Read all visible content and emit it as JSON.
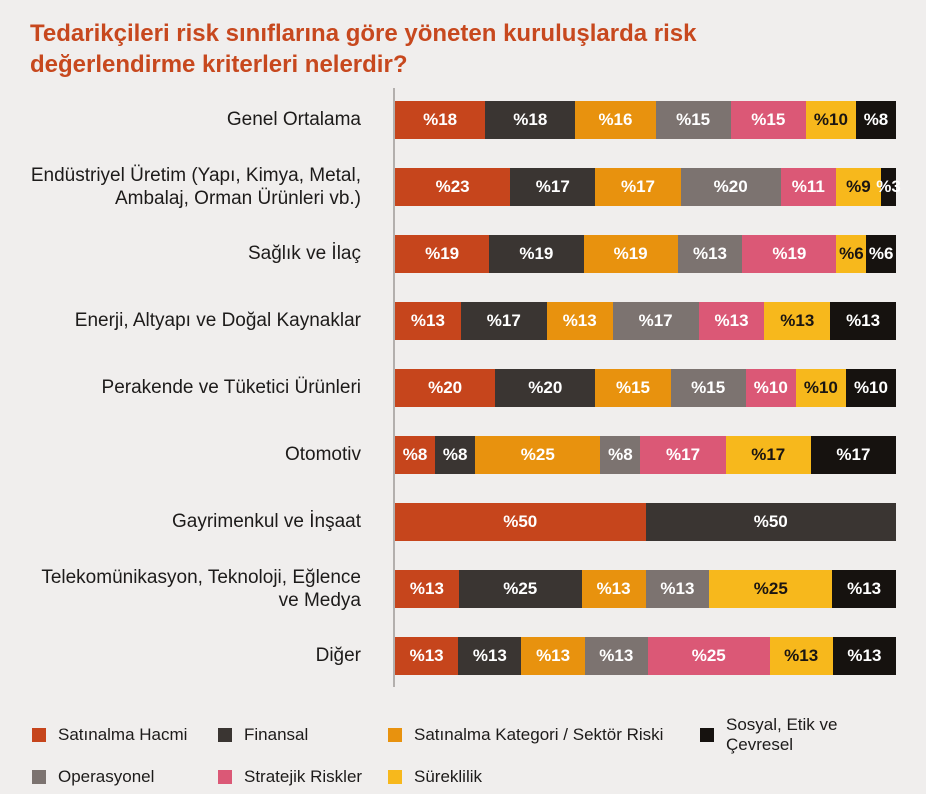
{
  "title_lines": [
    "Tedarikçileri risk sınıflarına göre yöneten kuruluşlarda risk",
    "değerlendirme kriterleri nelerdir?"
  ],
  "palette": {
    "satinalma_hacmi": "#C6451C",
    "finansal": "#3A3532",
    "satinalma_kategori": "#E8920E",
    "sosyal_etik_cevresel": "#16120F",
    "operasyonel": "#7C7370",
    "stratejik_riskler": "#DB5876",
    "sureklilik": "#F7B81C"
  },
  "background_color": "#F0EEED",
  "title_color": "#C7481E",
  "axis_line_color": "#B3AFAD",
  "chart_data": {
    "type": "bar",
    "stacked": true,
    "orientation": "horizontal",
    "unit": "percent",
    "title": "Tedarikçileri risk sınıflarına göre yöneten kuruluşlarda risk değerlendirme kriterleri nelerdir?",
    "legend_position": "bottom",
    "grid": false,
    "categories": [
      "Genel Ortalama",
      "Endüstriyel Üretim (Yapı, Kimya, Metal, Ambalaj, Orman Ürünleri vb.)",
      "Sağlık ve İlaç",
      "Enerji, Altyapı ve Doğal Kaynaklar",
      "Perakende ve Tüketici Ürünleri",
      "Otomotiv",
      "Gayrimenkul ve İnşaat",
      "Telekomünikasyon, Teknoloji, Eğlence ve Medya",
      "Diğer"
    ],
    "rows": [
      {
        "category": "Genel Ortalama",
        "segments": [
          {
            "series": "satinalma_hacmi",
            "value": 18,
            "label": "%18"
          },
          {
            "series": "finansal",
            "value": 18,
            "label": "%18"
          },
          {
            "series": "satinalma_kategori",
            "value": 16,
            "label": "%16"
          },
          {
            "series": "operasyonel",
            "value": 15,
            "label": "%15"
          },
          {
            "series": "stratejik_riskler",
            "value": 15,
            "label": "%15"
          },
          {
            "series": "sureklilik",
            "value": 10,
            "label": "%10"
          },
          {
            "series": "sosyal_etik_cevresel",
            "value": 8,
            "label": "%8"
          }
        ]
      },
      {
        "category": "Endüstriyel Üretim (Yapı, Kimya, Metal, Ambalaj, Orman Ürünleri vb.)",
        "segments": [
          {
            "series": "satinalma_hacmi",
            "value": 23,
            "label": "%23"
          },
          {
            "series": "finansal",
            "value": 17,
            "label": "%17"
          },
          {
            "series": "satinalma_kategori",
            "value": 17,
            "label": "%17"
          },
          {
            "series": "operasyonel",
            "value": 20,
            "label": "%20"
          },
          {
            "series": "stratejik_riskler",
            "value": 11,
            "label": "%11"
          },
          {
            "series": "sureklilik",
            "value": 9,
            "label": "%9"
          },
          {
            "series": "sosyal_etik_cevresel",
            "value": 3,
            "label": "%3"
          }
        ]
      },
      {
        "category": "Sağlık ve İlaç",
        "segments": [
          {
            "series": "satinalma_hacmi",
            "value": 19,
            "label": "%19"
          },
          {
            "series": "finansal",
            "value": 19,
            "label": "%19"
          },
          {
            "series": "satinalma_kategori",
            "value": 19,
            "label": "%19"
          },
          {
            "series": "operasyonel",
            "value": 13,
            "label": "%13"
          },
          {
            "series": "stratejik_riskler",
            "value": 19,
            "label": "%19"
          },
          {
            "series": "sureklilik",
            "value": 6,
            "label": "%6"
          },
          {
            "series": "sosyal_etik_cevresel",
            "value": 6,
            "label": "%6"
          }
        ]
      },
      {
        "category": "Enerji, Altyapı ve Doğal Kaynaklar",
        "segments": [
          {
            "series": "satinalma_hacmi",
            "value": 13,
            "label": "%13"
          },
          {
            "series": "finansal",
            "value": 17,
            "label": "%17"
          },
          {
            "series": "satinalma_kategori",
            "value": 13,
            "label": "%13"
          },
          {
            "series": "operasyonel",
            "value": 17,
            "label": "%17"
          },
          {
            "series": "stratejik_riskler",
            "value": 13,
            "label": "%13"
          },
          {
            "series": "sureklilik",
            "value": 13,
            "label": "%13"
          },
          {
            "series": "sosyal_etik_cevresel",
            "value": 13,
            "label": "%13"
          }
        ]
      },
      {
        "category": "Perakende ve Tüketici Ürünleri",
        "segments": [
          {
            "series": "satinalma_hacmi",
            "value": 20,
            "label": "%20"
          },
          {
            "series": "finansal",
            "value": 20,
            "label": "%20"
          },
          {
            "series": "satinalma_kategori",
            "value": 15,
            "label": "%15"
          },
          {
            "series": "operasyonel",
            "value": 15,
            "label": "%15"
          },
          {
            "series": "stratejik_riskler",
            "value": 10,
            "label": "%10"
          },
          {
            "series": "sureklilik",
            "value": 10,
            "label": "%10"
          },
          {
            "series": "sosyal_etik_cevresel",
            "value": 10,
            "label": "%10"
          }
        ]
      },
      {
        "category": "Otomotiv",
        "segments": [
          {
            "series": "satinalma_hacmi",
            "value": 8,
            "label": "%8"
          },
          {
            "series": "finansal",
            "value": 8,
            "label": "%8"
          },
          {
            "series": "satinalma_kategori",
            "value": 25,
            "label": "%25"
          },
          {
            "series": "operasyonel",
            "value": 8,
            "label": "%8"
          },
          {
            "series": "stratejik_riskler",
            "value": 17,
            "label": "%17"
          },
          {
            "series": "sureklilik",
            "value": 17,
            "label": "%17"
          },
          {
            "series": "sosyal_etik_cevresel",
            "value": 17,
            "label": "%17"
          }
        ]
      },
      {
        "category": "Gayrimenkul ve İnşaat",
        "segments": [
          {
            "series": "satinalma_hacmi",
            "value": 50,
            "label": "%50"
          },
          {
            "series": "finansal",
            "value": 50,
            "label": "%50"
          }
        ]
      },
      {
        "category": "Telekomünikasyon, Teknoloji, Eğlence ve Medya",
        "segments": [
          {
            "series": "satinalma_hacmi",
            "value": 13,
            "label": "%13"
          },
          {
            "series": "finansal",
            "value": 25,
            "label": "%25"
          },
          {
            "series": "satinalma_kategori",
            "value": 13,
            "label": "%13"
          },
          {
            "series": "operasyonel",
            "value": 13,
            "label": "%13"
          },
          {
            "series": "sureklilik",
            "value": 25,
            "label": "%25"
          },
          {
            "series": "sosyal_etik_cevresel",
            "value": 13,
            "label": "%13"
          }
        ]
      },
      {
        "category": "Diğer",
        "segments": [
          {
            "series": "satinalma_hacmi",
            "value": 13,
            "label": "%13"
          },
          {
            "series": "finansal",
            "value": 13,
            "label": "%13"
          },
          {
            "series": "satinalma_kategori",
            "value": 13,
            "label": "%13"
          },
          {
            "series": "operasyonel",
            "value": 13,
            "label": "%13"
          },
          {
            "series": "stratejik_riskler",
            "value": 25,
            "label": "%25"
          },
          {
            "series": "sureklilik",
            "value": 13,
            "label": "%13"
          },
          {
            "series": "sosyal_etik_cevresel",
            "value": 13,
            "label": "%13"
          }
        ]
      }
    ]
  },
  "legend": {
    "items": [
      {
        "key": "satinalma_hacmi",
        "label": "Satınalma Hacmi"
      },
      {
        "key": "finansal",
        "label": "Finansal"
      },
      {
        "key": "satinalma_kategori",
        "label": "Satınalma Kategori / Sektör Riski"
      },
      {
        "key": "sosyal_etik_cevresel",
        "label": "Sosyal, Etik ve Çevresel"
      },
      {
        "key": "operasyonel",
        "label": "Operasyonel"
      },
      {
        "key": "stratejik_riskler",
        "label": "Stratejik Riskler"
      },
      {
        "key": "sureklilik",
        "label": "Süreklilik"
      }
    ]
  }
}
